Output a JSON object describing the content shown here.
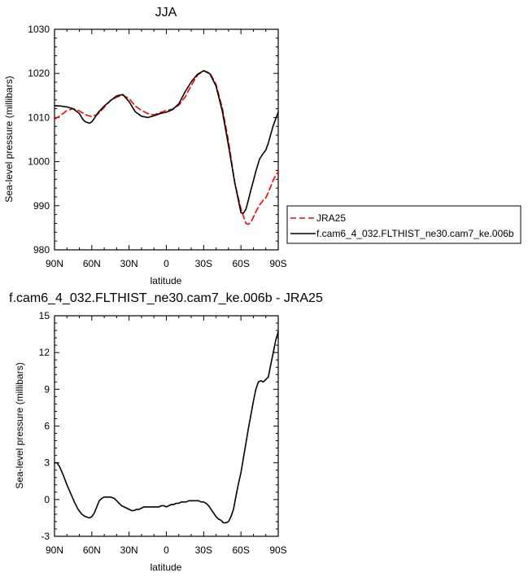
{
  "chart_data": [
    {
      "type": "line",
      "title": "JJA",
      "xlabel": "latitude",
      "ylabel": "Sea-level pressure (millibars)",
      "xlim": [
        -90,
        90
      ],
      "ylim": [
        980,
        1030
      ],
      "xticks": [
        {
          "value": -90,
          "label": "90N"
        },
        {
          "value": -60,
          "label": "60N"
        },
        {
          "value": -30,
          "label": "30N"
        },
        {
          "value": 0,
          "label": "0"
        },
        {
          "value": 30,
          "label": "30S"
        },
        {
          "value": 60,
          "label": "60S"
        },
        {
          "value": 90,
          "label": "90S"
        }
      ],
      "yticks": [
        980,
        990,
        1000,
        1010,
        1020,
        1030
      ],
      "legend_position": "right",
      "series": [
        {
          "name": "JRA25",
          "color": "#ff0000",
          "style": "dashed",
          "x": [
            -90,
            -85,
            -80,
            -75,
            -70,
            -65,
            -60,
            -55,
            -50,
            -45,
            -40,
            -35,
            -30,
            -25,
            -20,
            -15,
            -10,
            -5,
            0,
            5,
            10,
            15,
            20,
            25,
            30,
            35,
            40,
            45,
            50,
            55,
            60,
            62,
            64,
            66,
            68,
            70,
            72,
            75,
            78,
            80,
            82,
            84,
            86,
            88,
            90
          ],
          "y": [
            1009.6,
            1010.5,
            1011.6,
            1012.0,
            1011.5,
            1010.6,
            1010.2,
            1010.8,
            1012.3,
            1013.9,
            1014.6,
            1015.1,
            1014.3,
            1012.6,
            1011.6,
            1010.9,
            1010.6,
            1011.1,
            1011.6,
            1011.9,
            1012.8,
            1014.6,
            1017.3,
            1019.6,
            1020.6,
            1020.1,
            1017.5,
            1012.1,
            1004.6,
            995.3,
            989.3,
            987.6,
            986.0,
            985.8,
            986.3,
            987.4,
            988.6,
            990.2,
            991.3,
            991.8,
            993.0,
            994.4,
            995.8,
            996.9,
            997.7
          ]
        },
        {
          "name": "f.cam6_4_032.FLTHIST_ne30.cam7_ke.006b",
          "color": "#000000",
          "style": "solid",
          "x": [
            -90,
            -85,
            -80,
            -75,
            -70,
            -67,
            -65,
            -62,
            -60,
            -58,
            -55,
            -50,
            -45,
            -40,
            -35,
            -30,
            -25,
            -20,
            -15,
            -10,
            -5,
            0,
            5,
            10,
            15,
            20,
            25,
            30,
            35,
            40,
            45,
            50,
            55,
            60,
            62,
            64,
            66,
            68,
            70,
            72,
            75,
            78,
            80,
            82,
            84,
            86,
            88,
            90
          ],
          "y": [
            1012.7,
            1012.6,
            1012.4,
            1012.0,
            1010.9,
            1009.5,
            1009.0,
            1008.7,
            1009.0,
            1009.8,
            1011.1,
            1012.6,
            1013.8,
            1014.9,
            1015.2,
            1013.6,
            1011.3,
            1010.3,
            1010.0,
            1010.4,
            1010.9,
            1011.2,
            1011.8,
            1013.1,
            1015.8,
            1018.1,
            1019.8,
            1020.6,
            1019.9,
            1017.1,
            1011.4,
            1003.6,
            995.3,
            988.4,
            988.3,
            989.2,
            991.3,
            993.6,
            995.6,
            997.8,
            1000.6,
            1001.9,
            1002.6,
            1004.2,
            1006.2,
            1008.2,
            1009.7,
            1011.2
          ]
        }
      ]
    },
    {
      "type": "line",
      "title": "f.cam6_4_032.FLTHIST_ne30.cam7_ke.006b - JRA25",
      "xlabel": "latitude",
      "ylabel": "Sea-level pressure (millibars)",
      "xlim": [
        -90,
        90
      ],
      "ylim": [
        -3,
        15
      ],
      "xticks": [
        {
          "value": -90,
          "label": "90N"
        },
        {
          "value": -60,
          "label": "60N"
        },
        {
          "value": -30,
          "label": "30N"
        },
        {
          "value": 0,
          "label": "0"
        },
        {
          "value": 30,
          "label": "30S"
        },
        {
          "value": 60,
          "label": "60S"
        },
        {
          "value": 90,
          "label": "90S"
        }
      ],
      "yticks": [
        -3,
        0,
        3,
        6,
        9,
        12,
        15
      ],
      "series": [
        {
          "color": "#000000",
          "style": "solid",
          "x": [
            -90,
            -88,
            -86,
            -83,
            -80,
            -77,
            -74,
            -71,
            -68,
            -65,
            -62,
            -60,
            -58,
            -56,
            -54,
            -52,
            -50,
            -48,
            -45,
            -42,
            -40,
            -38,
            -36,
            -34,
            -32,
            -30,
            -28,
            -26,
            -24,
            -22,
            -20,
            -18,
            -16,
            -14,
            -12,
            -10,
            -8,
            -6,
            -4,
            -2,
            0,
            2,
            4,
            6,
            8,
            10,
            12,
            14,
            16,
            18,
            20,
            22,
            24,
            26,
            28,
            30,
            32,
            34,
            36,
            38,
            40,
            42,
            44,
            46,
            48,
            50,
            52,
            54,
            56,
            58,
            60,
            62,
            64,
            66,
            68,
            70,
            72,
            74,
            76,
            78,
            80,
            82,
            84,
            86,
            88,
            90
          ],
          "y": [
            3.0,
            3.0,
            2.7,
            2.0,
            1.2,
            0.5,
            -0.2,
            -0.8,
            -1.2,
            -1.4,
            -1.5,
            -1.4,
            -1.1,
            -0.6,
            -0.1,
            0.1,
            0.2,
            0.2,
            0.2,
            0.1,
            -0.1,
            -0.3,
            -0.5,
            -0.6,
            -0.7,
            -0.8,
            -0.9,
            -0.9,
            -0.8,
            -0.8,
            -0.7,
            -0.6,
            -0.6,
            -0.6,
            -0.6,
            -0.6,
            -0.6,
            -0.6,
            -0.5,
            -0.5,
            -0.6,
            -0.5,
            -0.4,
            -0.4,
            -0.3,
            -0.3,
            -0.2,
            -0.2,
            -0.2,
            -0.1,
            -0.1,
            -0.1,
            -0.1,
            -0.1,
            -0.2,
            -0.2,
            -0.3,
            -0.5,
            -0.8,
            -1.1,
            -1.4,
            -1.6,
            -1.7,
            -1.9,
            -1.9,
            -1.8,
            -1.4,
            -0.8,
            0.3,
            1.3,
            2.2,
            3.4,
            4.6,
            5.8,
            6.9,
            8.0,
            9.0,
            9.6,
            9.7,
            9.6,
            9.8,
            10.0,
            11.0,
            12.0,
            13.0,
            13.7
          ]
        }
      ]
    }
  ]
}
